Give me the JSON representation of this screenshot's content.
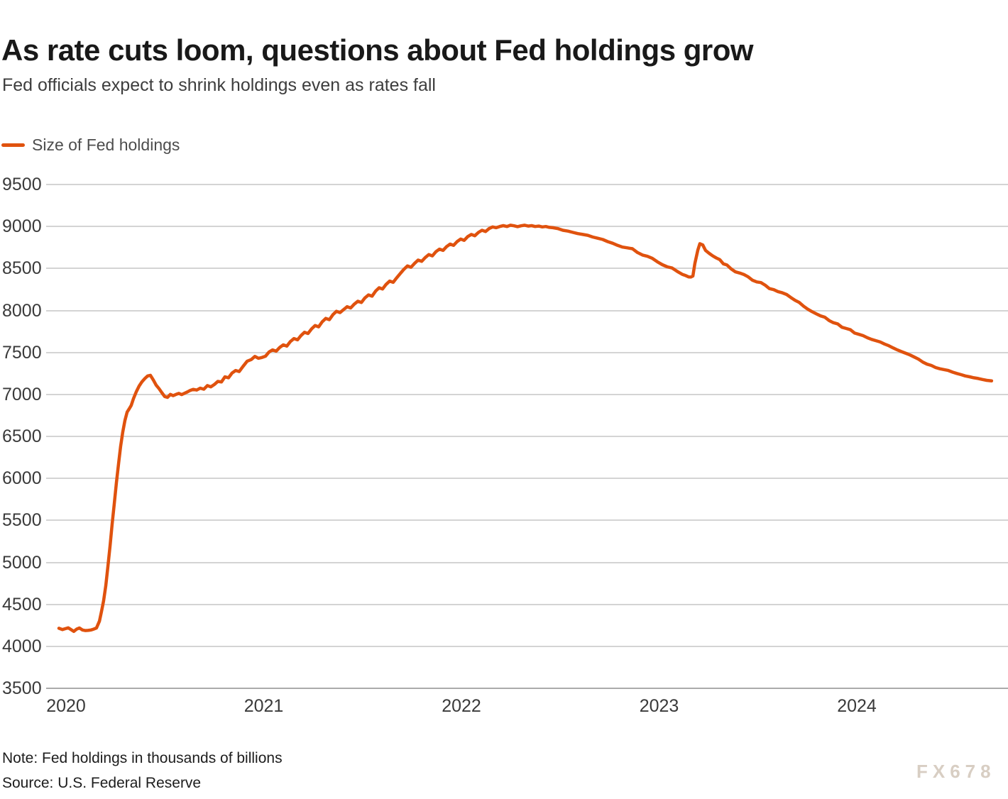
{
  "header": {
    "title": "As rate cuts loom, questions about Fed holdings grow",
    "subtitle": "Fed officials expect to shrink holdings even as rates fall"
  },
  "legend": {
    "label": "Size of Fed holdings"
  },
  "footer": {
    "note": "Note: Fed holdings in thousands of billions",
    "source": "Source: U.S. Federal Reserve",
    "watermark": "FX678"
  },
  "colors": {
    "line": "#e0520e",
    "grid": "#d4d4d4",
    "axis_line": "#ababab",
    "title": "#191919",
    "subtitle": "#3d3d3d",
    "tick": "#3a3a3a",
    "watermark": "#d8cec3"
  },
  "chart_data": {
    "type": "line",
    "title": "As rate cuts loom, questions about Fed holdings grow",
    "subtitle": "Fed officials expect to shrink holdings even as rates fall",
    "xlabel": "",
    "ylabel": "",
    "note": "Note: Fed holdings in thousands of billions",
    "source": "Source: U.S. Federal Reserve",
    "legend_position": "top-left",
    "grid": "horizontal",
    "x_ticks": [
      2020,
      2021,
      2022,
      2023,
      2024
    ],
    "y_ticks": [
      3500,
      4000,
      4500,
      5000,
      5500,
      6000,
      6500,
      7000,
      7500,
      8000,
      8500,
      9000,
      9500
    ],
    "xlim": [
      2019.9,
      2024.765
    ],
    "ylim": [
      3500,
      9500
    ],
    "series": [
      {
        "name": "Size of Fed holdings",
        "color": "#e0520e",
        "points": [
          [
            2019.964,
            4215
          ],
          [
            2019.982,
            4200
          ],
          [
            2019.996,
            4210
          ],
          [
            2020.011,
            4220
          ],
          [
            2020.025,
            4200
          ],
          [
            2020.039,
            4178
          ],
          [
            2020.054,
            4205
          ],
          [
            2020.068,
            4218
          ],
          [
            2020.083,
            4195
          ],
          [
            2020.097,
            4188
          ],
          [
            2020.111,
            4190
          ],
          [
            2020.126,
            4195
          ],
          [
            2020.14,
            4205
          ],
          [
            2020.154,
            4218
          ],
          [
            2020.169,
            4300
          ],
          [
            2020.18,
            4420
          ],
          [
            2020.19,
            4540
          ],
          [
            2020.201,
            4720
          ],
          [
            2020.212,
            4950
          ],
          [
            2020.223,
            5200
          ],
          [
            2020.233,
            5450
          ],
          [
            2020.244,
            5700
          ],
          [
            2020.255,
            5950
          ],
          [
            2020.266,
            6180
          ],
          [
            2020.276,
            6380
          ],
          [
            2020.287,
            6550
          ],
          [
            2020.298,
            6690
          ],
          [
            2020.309,
            6790
          ],
          [
            2020.32,
            6830
          ],
          [
            2020.33,
            6870
          ],
          [
            2020.341,
            6950
          ],
          [
            2020.355,
            7030
          ],
          [
            2020.37,
            7100
          ],
          [
            2020.384,
            7150
          ],
          [
            2020.399,
            7190
          ],
          [
            2020.413,
            7220
          ],
          [
            2020.427,
            7228
          ],
          [
            2020.442,
            7170
          ],
          [
            2020.456,
            7110
          ],
          [
            2020.47,
            7070
          ],
          [
            2020.485,
            7020
          ],
          [
            2020.499,
            6975
          ],
          [
            2020.513,
            6965
          ],
          [
            2020.528,
            7000
          ],
          [
            2020.542,
            6985
          ],
          [
            2020.557,
            7000
          ],
          [
            2020.571,
            7012
          ],
          [
            2020.585,
            6998
          ],
          [
            2020.6,
            7015
          ],
          [
            2020.614,
            7030
          ],
          [
            2020.628,
            7048
          ],
          [
            2020.643,
            7060
          ],
          [
            2020.661,
            7052
          ],
          [
            2020.679,
            7075
          ],
          [
            2020.697,
            7062
          ],
          [
            2020.715,
            7105
          ],
          [
            2020.732,
            7090
          ],
          [
            2020.75,
            7118
          ],
          [
            2020.768,
            7155
          ],
          [
            2020.786,
            7148
          ],
          [
            2020.804,
            7210
          ],
          [
            2020.822,
            7198
          ],
          [
            2020.84,
            7255
          ],
          [
            2020.858,
            7285
          ],
          [
            2020.876,
            7272
          ],
          [
            2020.894,
            7330
          ],
          [
            2020.916,
            7395
          ],
          [
            2020.937,
            7415
          ],
          [
            2020.955,
            7452
          ],
          [
            2020.973,
            7430
          ],
          [
            2020.991,
            7440
          ],
          [
            2021.009,
            7455
          ],
          [
            2021.027,
            7505
          ],
          [
            2021.045,
            7530
          ],
          [
            2021.063,
            7515
          ],
          [
            2021.081,
            7560
          ],
          [
            2021.099,
            7590
          ],
          [
            2021.117,
            7575
          ],
          [
            2021.135,
            7630
          ],
          [
            2021.153,
            7665
          ],
          [
            2021.171,
            7650
          ],
          [
            2021.188,
            7700
          ],
          [
            2021.206,
            7740
          ],
          [
            2021.224,
            7725
          ],
          [
            2021.242,
            7780
          ],
          [
            2021.26,
            7820
          ],
          [
            2021.278,
            7805
          ],
          [
            2021.296,
            7865
          ],
          [
            2021.314,
            7905
          ],
          [
            2021.332,
            7890
          ],
          [
            2021.35,
            7950
          ],
          [
            2021.368,
            7990
          ],
          [
            2021.386,
            7975
          ],
          [
            2021.404,
            8010
          ],
          [
            2021.422,
            8045
          ],
          [
            2021.44,
            8030
          ],
          [
            2021.458,
            8075
          ],
          [
            2021.476,
            8110
          ],
          [
            2021.494,
            8095
          ],
          [
            2021.512,
            8150
          ],
          [
            2021.53,
            8185
          ],
          [
            2021.548,
            8170
          ],
          [
            2021.566,
            8230
          ],
          [
            2021.584,
            8270
          ],
          [
            2021.601,
            8255
          ],
          [
            2021.619,
            8310
          ],
          [
            2021.637,
            8350
          ],
          [
            2021.655,
            8335
          ],
          [
            2021.673,
            8390
          ],
          [
            2021.691,
            8440
          ],
          [
            2021.709,
            8490
          ],
          [
            2021.727,
            8530
          ],
          [
            2021.745,
            8515
          ],
          [
            2021.763,
            8560
          ],
          [
            2021.781,
            8600
          ],
          [
            2021.799,
            8585
          ],
          [
            2021.817,
            8630
          ],
          [
            2021.835,
            8665
          ],
          [
            2021.853,
            8650
          ],
          [
            2021.871,
            8700
          ],
          [
            2021.889,
            8730
          ],
          [
            2021.907,
            8715
          ],
          [
            2021.925,
            8760
          ],
          [
            2021.943,
            8790
          ],
          [
            2021.96,
            8775
          ],
          [
            2021.978,
            8820
          ],
          [
            2021.996,
            8850
          ],
          [
            2022.014,
            8835
          ],
          [
            2022.032,
            8880
          ],
          [
            2022.05,
            8905
          ],
          [
            2022.068,
            8890
          ],
          [
            2022.086,
            8930
          ],
          [
            2022.104,
            8955
          ],
          [
            2022.122,
            8940
          ],
          [
            2022.14,
            8975
          ],
          [
            2022.158,
            8995
          ],
          [
            2022.176,
            8985
          ],
          [
            2022.194,
            9000
          ],
          [
            2022.212,
            9010
          ],
          [
            2022.23,
            9000
          ],
          [
            2022.248,
            9015
          ],
          [
            2022.266,
            9008
          ],
          [
            2022.284,
            8998
          ],
          [
            2022.302,
            9008
          ],
          [
            2022.32,
            9015
          ],
          [
            2022.338,
            9005
          ],
          [
            2022.355,
            9010
          ],
          [
            2022.373,
            9000
          ],
          [
            2022.391,
            9005
          ],
          [
            2022.409,
            8995
          ],
          [
            2022.427,
            9000
          ],
          [
            2022.445,
            8990
          ],
          [
            2022.463,
            8985
          ],
          [
            2022.488,
            8975
          ],
          [
            2022.513,
            8955
          ],
          [
            2022.539,
            8945
          ],
          [
            2022.564,
            8930
          ],
          [
            2022.589,
            8915
          ],
          [
            2022.614,
            8905
          ],
          [
            2022.639,
            8895
          ],
          [
            2022.664,
            8875
          ],
          [
            2022.689,
            8860
          ],
          [
            2022.715,
            8845
          ],
          [
            2022.74,
            8820
          ],
          [
            2022.765,
            8800
          ],
          [
            2022.79,
            8775
          ],
          [
            2022.815,
            8755
          ],
          [
            2022.84,
            8745
          ],
          [
            2022.865,
            8735
          ],
          [
            2022.891,
            8690
          ],
          [
            2022.916,
            8660
          ],
          [
            2022.941,
            8645
          ],
          [
            2022.966,
            8620
          ],
          [
            2022.991,
            8580
          ],
          [
            2023.016,
            8545
          ],
          [
            2023.041,
            8520
          ],
          [
            2023.066,
            8505
          ],
          [
            2023.092,
            8465
          ],
          [
            2023.117,
            8430
          ],
          [
            2023.135,
            8415
          ],
          [
            2023.149,
            8400
          ],
          [
            2023.16,
            8398
          ],
          [
            2023.171,
            8410
          ],
          [
            2023.181,
            8560
          ],
          [
            2023.196,
            8720
          ],
          [
            2023.206,
            8795
          ],
          [
            2023.221,
            8780
          ],
          [
            2023.235,
            8715
          ],
          [
            2023.253,
            8680
          ],
          [
            2023.271,
            8650
          ],
          [
            2023.289,
            8625
          ],
          [
            2023.307,
            8605
          ],
          [
            2023.325,
            8555
          ],
          [
            2023.343,
            8542
          ],
          [
            2023.364,
            8495
          ],
          [
            2023.386,
            8460
          ],
          [
            2023.408,
            8445
          ],
          [
            2023.429,
            8428
          ],
          [
            2023.451,
            8400
          ],
          [
            2023.472,
            8360
          ],
          [
            2023.494,
            8340
          ],
          [
            2023.515,
            8332
          ],
          [
            2023.537,
            8300
          ],
          [
            2023.558,
            8260
          ],
          [
            2023.58,
            8248
          ],
          [
            2023.601,
            8225
          ],
          [
            2023.623,
            8210
          ],
          [
            2023.645,
            8190
          ],
          [
            2023.666,
            8155
          ],
          [
            2023.688,
            8120
          ],
          [
            2023.709,
            8095
          ],
          [
            2023.731,
            8050
          ],
          [
            2023.752,
            8015
          ],
          [
            2023.774,
            7985
          ],
          [
            2023.795,
            7960
          ],
          [
            2023.817,
            7935
          ],
          [
            2023.838,
            7920
          ],
          [
            2023.86,
            7880
          ],
          [
            2023.881,
            7855
          ],
          [
            2023.903,
            7840
          ],
          [
            2023.925,
            7800
          ],
          [
            2023.946,
            7785
          ],
          [
            2023.968,
            7770
          ],
          [
            2023.989,
            7730
          ],
          [
            2024.011,
            7715
          ],
          [
            2024.032,
            7700
          ],
          [
            2024.054,
            7675
          ],
          [
            2024.075,
            7655
          ],
          [
            2024.097,
            7640
          ],
          [
            2024.118,
            7625
          ],
          [
            2024.14,
            7600
          ],
          [
            2024.162,
            7580
          ],
          [
            2024.183,
            7555
          ],
          [
            2024.205,
            7530
          ],
          [
            2024.226,
            7510
          ],
          [
            2024.248,
            7490
          ],
          [
            2024.269,
            7470
          ],
          [
            2024.291,
            7445
          ],
          [
            2024.312,
            7420
          ],
          [
            2024.334,
            7385
          ],
          [
            2024.355,
            7360
          ],
          [
            2024.377,
            7345
          ],
          [
            2024.399,
            7320
          ],
          [
            2024.42,
            7305
          ],
          [
            2024.442,
            7295
          ],
          [
            2024.463,
            7285
          ],
          [
            2024.485,
            7265
          ],
          [
            2024.506,
            7250
          ],
          [
            2024.528,
            7235
          ],
          [
            2024.549,
            7220
          ],
          [
            2024.571,
            7210
          ],
          [
            2024.592,
            7198
          ],
          [
            2024.614,
            7190
          ],
          [
            2024.636,
            7178
          ],
          [
            2024.657,
            7168
          ],
          [
            2024.682,
            7162
          ]
        ]
      }
    ]
  }
}
